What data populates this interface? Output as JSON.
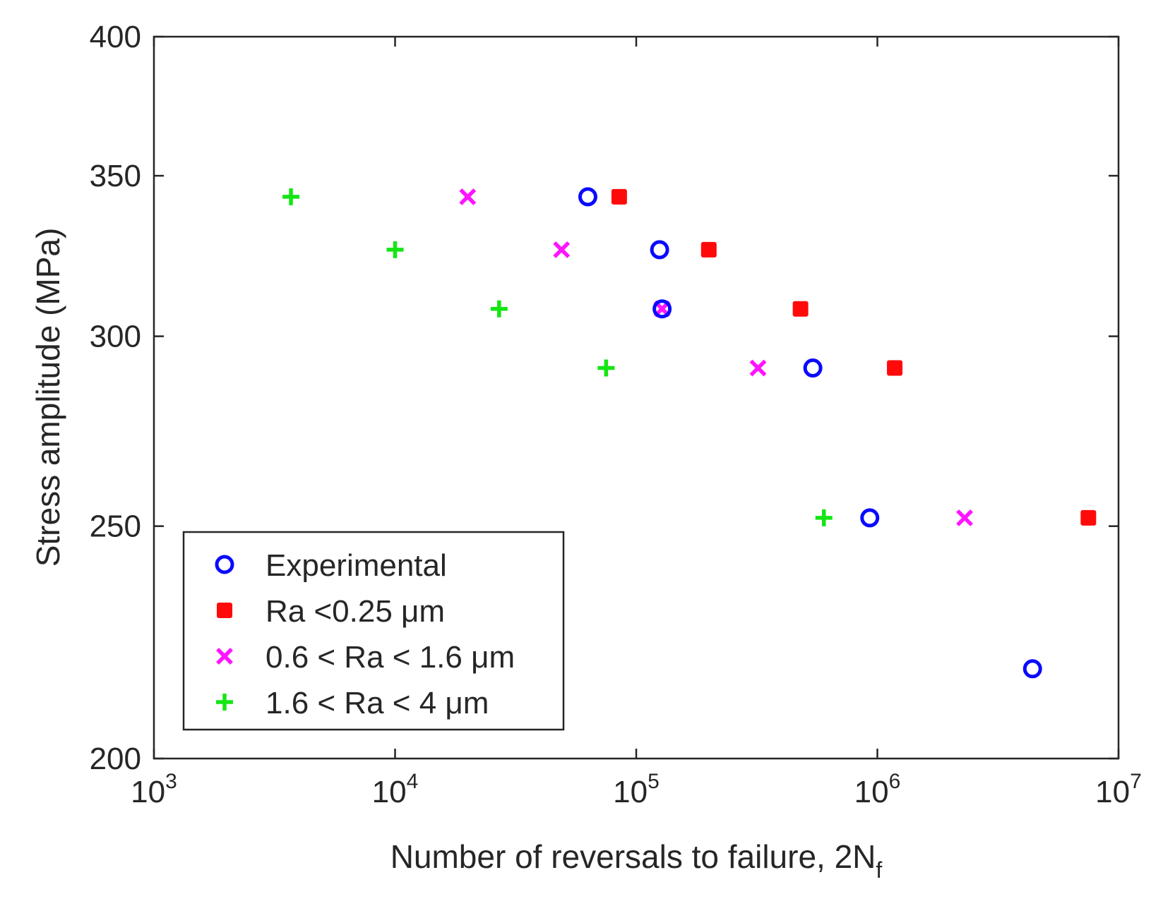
{
  "chart_data": {
    "type": "scatter",
    "title": "",
    "xlabel": "Number of reversals to failure, 2N",
    "xlabel_sub": "f",
    "ylabel": "Stress amplitude (MPa)",
    "xscale": "log",
    "yscale": "log",
    "xlim": [
      1000,
      10000000
    ],
    "ylim": [
      200,
      400
    ],
    "x_ticks": [
      {
        "value": 1000,
        "base": "10",
        "exp": "3"
      },
      {
        "value": 10000,
        "base": "10",
        "exp": "4"
      },
      {
        "value": 100000,
        "base": "10",
        "exp": "5"
      },
      {
        "value": 1000000,
        "base": "10",
        "exp": "6"
      },
      {
        "value": 10000000,
        "base": "10",
        "exp": "7"
      }
    ],
    "y_ticks": [
      {
        "value": 200,
        "label": "200"
      },
      {
        "value": 250,
        "label": "250"
      },
      {
        "value": 300,
        "label": "300"
      },
      {
        "value": 350,
        "label": "350"
      },
      {
        "value": 400,
        "label": "400"
      }
    ],
    "legend_position": "bottom-left",
    "series": [
      {
        "name": "Experimental",
        "marker": "circle",
        "color": "#0a0aff",
        "points": [
          {
            "x": 63000,
            "y": 343
          },
          {
            "x": 125000,
            "y": 326
          },
          {
            "x": 128000,
            "y": 308
          },
          {
            "x": 540000,
            "y": 291
          },
          {
            "x": 930000,
            "y": 252
          },
          {
            "x": 4400000,
            "y": 218
          }
        ]
      },
      {
        "name": "Ra <0.25 μm",
        "marker": "square",
        "color": "#ff0a0a",
        "points": [
          {
            "x": 85000,
            "y": 343
          },
          {
            "x": 200000,
            "y": 326
          },
          {
            "x": 480000,
            "y": 308
          },
          {
            "x": 1180000,
            "y": 291
          },
          {
            "x": 7500000,
            "y": 252
          }
        ]
      },
      {
        "name": "0.6 < Ra < 1.6 μm",
        "marker": "x",
        "color": "#ff14ff",
        "points": [
          {
            "x": 20000,
            "y": 343
          },
          {
            "x": 49000,
            "y": 326
          },
          {
            "x": 128000,
            "y": 308
          },
          {
            "x": 320000,
            "y": 291
          },
          {
            "x": 2300000,
            "y": 252
          }
        ]
      },
      {
        "name": "1.6 < Ra < 4 μm",
        "marker": "plus",
        "color": "#14e614",
        "points": [
          {
            "x": 3700,
            "y": 343
          },
          {
            "x": 10000,
            "y": 326
          },
          {
            "x": 27000,
            "y": 308
          },
          {
            "x": 75000,
            "y": 291
          },
          {
            "x": 600000,
            "y": 252
          }
        ]
      }
    ]
  }
}
